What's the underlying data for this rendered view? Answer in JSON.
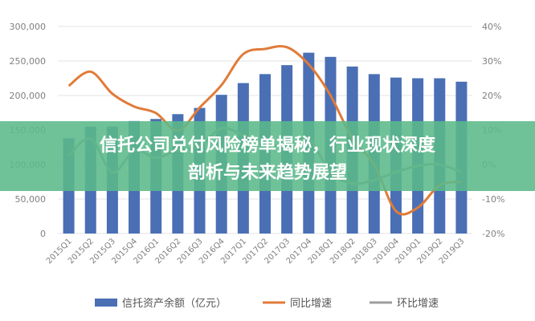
{
  "banner": {
    "line1": "信托公司兑付风险榜单揭秘，行业现状深度",
    "line2": "剖析与未来趋势展望",
    "bg_color": "#5bb98a"
  },
  "chart_data": {
    "type": "bar",
    "categories": [
      "2015Q1",
      "2015Q2",
      "2015Q3",
      "2015Q4",
      "2016Q1",
      "2016Q2",
      "2016Q3",
      "2016Q4",
      "2017Q1",
      "2017Q2",
      "2017Q3",
      "2017Q4",
      "2018Q1",
      "2018Q2",
      "2018Q3",
      "2018Q4",
      "2019Q1",
      "2019Q2",
      "2019Q3"
    ],
    "series": [
      {
        "name": "信托资产余额（亿元）",
        "type": "bar",
        "axis": "left",
        "color": "#4a6fb5",
        "values": [
          138000,
          155000,
          155000,
          163000,
          166000,
          173000,
          182000,
          201000,
          218000,
          231000,
          244000,
          262000,
          256000,
          242000,
          231000,
          226000,
          225000,
          225000,
          220000
        ]
      },
      {
        "name": "同比增速",
        "type": "line",
        "axis": "right",
        "color": "#e07b39",
        "values": [
          22.8,
          26.9,
          20.5,
          16.8,
          14.9,
          9.8,
          16.5,
          23.0,
          32.0,
          33.5,
          34.0,
          29.0,
          20.0,
          7.5,
          0.0,
          -13.5,
          -12.5,
          -6.0,
          -5.0
        ]
      },
      {
        "name": "环比增速",
        "type": "line",
        "axis": "right",
        "color": "#9e9e9e",
        "values": [
          2.5,
          7.5,
          -2.3,
          4.0,
          2.0,
          4.2,
          5.3,
          10.5,
          8.5,
          6.0,
          5.6,
          7.4,
          -2.3,
          -5.5,
          -4.5,
          -2.2,
          -0.4,
          0.0,
          -2.2
        ]
      }
    ],
    "ylim_left": [
      0,
      300000
    ],
    "yticks_left": [
      "0",
      "50,000",
      "100,000",
      "150,000",
      "200,000",
      "250,000",
      "300,000"
    ],
    "ylim_right": [
      -20,
      40
    ],
    "yticks_right": [
      "-20%",
      "-10%",
      "0%",
      "10%",
      "20%",
      "30%",
      "40%"
    ],
    "legend_position": "bottom",
    "grid": true
  }
}
